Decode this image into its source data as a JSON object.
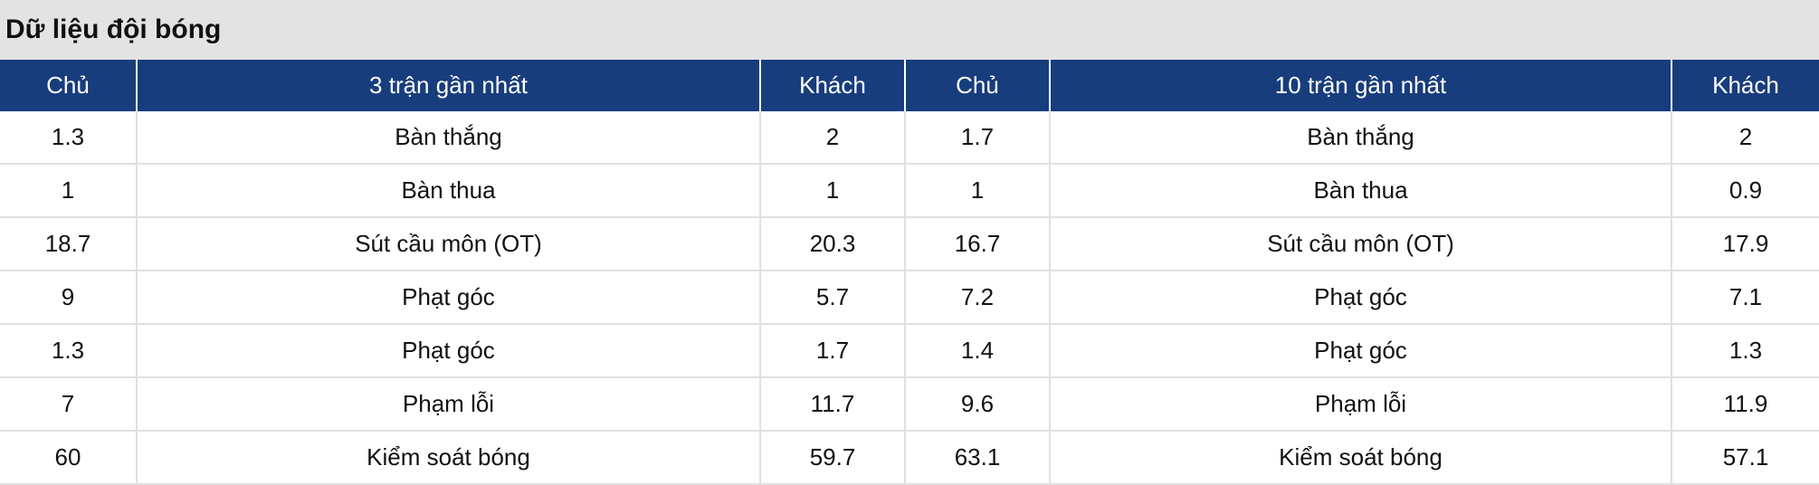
{
  "title": "Dữ liệu đội bóng",
  "colors": {
    "header_bg": "#183d7d",
    "title_bg": "#e3e3e3"
  },
  "headers": [
    "Chủ",
    "3 trận gần nhất",
    "Khách",
    "Chủ",
    "10 trận gần nhất",
    "Khách"
  ],
  "rows": [
    [
      "1.3",
      "Bàn thắng",
      "2",
      "1.7",
      "Bàn thắng",
      "2"
    ],
    [
      "1",
      "Bàn thua",
      "1",
      "1",
      "Bàn thua",
      "0.9"
    ],
    [
      "18.7",
      "Sút cầu môn (OT)",
      "20.3",
      "16.7",
      "Sút cầu môn (OT)",
      "17.9"
    ],
    [
      "9",
      "Phạt góc",
      "5.7",
      "7.2",
      "Phạt góc",
      "7.1"
    ],
    [
      "1.3",
      "Phạt góc",
      "1.7",
      "1.4",
      "Phạt góc",
      "1.3"
    ],
    [
      "7",
      "Phạm lỗi",
      "11.7",
      "9.6",
      "Phạm lỗi",
      "11.9"
    ],
    [
      "60",
      "Kiểm soát bóng",
      "59.7",
      "63.1",
      "Kiểm soát bóng",
      "57.1"
    ]
  ]
}
